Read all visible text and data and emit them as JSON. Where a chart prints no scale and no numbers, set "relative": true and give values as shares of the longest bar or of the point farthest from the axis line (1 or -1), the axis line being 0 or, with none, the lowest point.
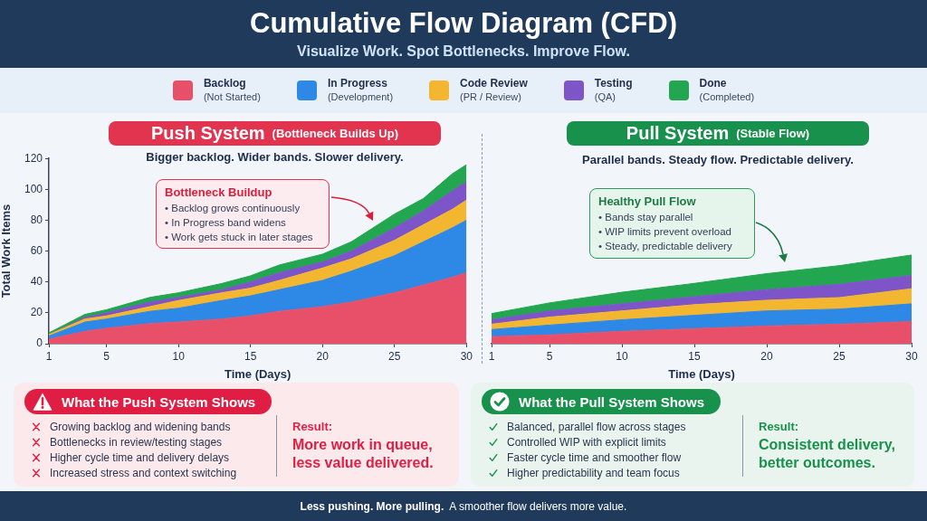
{
  "chart_data": [
    {
      "type": "other",
      "title": "Cumulative Flow Diagram (CFD)",
      "subtitle": "Visualize Work. Spot Bottlenecks. Improve Flow."
    },
    {
      "type": "area",
      "title": "Push System (Bottleneck Builds Up)",
      "subtitle": "Bigger backlog. Wider bands. Slower delivery.",
      "xlabel": "Time (Days)",
      "ylabel": "Total Work Items",
      "annotations": [
        "Bottleneck Buildup",
        "• Backlog grows continuously",
        "• In Progress band widens",
        "• Work gets stuck in later stages"
      ],
      "stacked": true,
      "legend": "top",
      "xlim": [
        1,
        30
      ],
      "xticks": [
        1,
        5,
        10,
        15,
        20,
        25,
        30
      ],
      "ylim": [
        0,
        120
      ],
      "yticks": [
        0,
        20,
        40,
        60,
        80,
        100,
        120
      ],
      "x": [
        1,
        3.5,
        5,
        8,
        10,
        13,
        15,
        17,
        20,
        22,
        25,
        27,
        29,
        30
      ],
      "series": [
        {
          "name": "Backlog (Not Started)",
          "color": "#e8506a",
          "values": [
            3,
            8,
            10,
            13,
            14,
            16,
            18,
            21,
            24,
            27,
            33,
            38,
            43,
            46
          ]
        },
        {
          "name": "In Progress (Development)",
          "color": "#2e88e6",
          "values": [
            2,
            6,
            6,
            8,
            9,
            12,
            13,
            14,
            17,
            20,
            24,
            28,
            32,
            34
          ]
        },
        {
          "name": "Code Review (PR / Review)",
          "color": "#f2b630",
          "values": [
            1,
            2,
            2,
            3,
            5,
            5,
            5,
            6,
            8,
            8,
            10,
            11,
            12,
            13
          ]
        },
        {
          "name": "Testing (QA)",
          "color": "#7d55c9",
          "values": [
            0,
            1,
            2,
            3,
            2,
            2,
            4,
            5,
            4,
            5,
            8,
            9,
            12,
            12
          ]
        },
        {
          "name": "Done (Completed)",
          "color": "#22a650",
          "values": [
            1,
            2,
            2,
            3,
            3,
            4,
            4,
            5,
            5,
            6,
            9,
            8,
            11,
            11
          ]
        }
      ]
    },
    {
      "type": "area",
      "title": "Pull System (Stable Flow)",
      "subtitle": "Parallel bands. Steady flow. Predictable delivery.",
      "xlabel": "Time (Days)",
      "annotations": [
        "Healthy Pull Flow",
        "• Bands stay parallel",
        "• WIP limits prevent overload",
        "• Steady, predictable delivery"
      ],
      "stacked": true,
      "relative": true,
      "legend": "top",
      "xlim": [
        1,
        30
      ],
      "xticks": [
        1,
        5,
        10,
        15,
        20,
        25,
        30
      ],
      "x": [
        1,
        5,
        10,
        15,
        20,
        25,
        30
      ],
      "series": [
        {
          "name": "Backlog (Not Started)",
          "color": "#e8506a",
          "values": [
            0.08,
            0.1,
            0.14,
            0.17,
            0.2,
            0.22,
            0.25
          ]
        },
        {
          "name": "In Progress (Development)",
          "color": "#2e88e6",
          "values": [
            0.08,
            0.11,
            0.13,
            0.15,
            0.17,
            0.17,
            0.2
          ]
        },
        {
          "name": "Code Review (PR / Review)",
          "color": "#f2b630",
          "values": [
            0.06,
            0.09,
            0.1,
            0.12,
            0.12,
            0.13,
            0.17
          ]
        },
        {
          "name": "Testing (QA)",
          "color": "#7d55c9",
          "values": [
            0.05,
            0.07,
            0.08,
            0.09,
            0.12,
            0.15,
            0.15
          ]
        },
        {
          "name": "Done (Completed)",
          "color": "#22a650",
          "values": [
            0.07,
            0.09,
            0.13,
            0.15,
            0.18,
            0.21,
            0.23
          ]
        }
      ]
    },
    {
      "type": "other",
      "title": "What the Push System Shows",
      "color": "#e01e44",
      "annotations": [
        "Growing backlog and widening bands",
        "Bottlenecks in review/testing stages",
        "Higher cycle time and delivery delays",
        "Increased stress and context switching",
        "Result:",
        "More work in queue, less value delivered."
      ]
    },
    {
      "type": "other",
      "title": "What the Pull System Shows",
      "color": "#17914b",
      "annotations": [
        "Balanced, parallel flow across stages",
        "Controlled WIP with explicit limits",
        "Faster cycle time and smoother flow",
        "Higher predictability and team focus",
        "Result:",
        "Consistent delivery, better outcomes."
      ]
    },
    {
      "type": "other",
      "annotations": [
        "Less pushing. More pulling.",
        "A smoother flow delivers more value."
      ]
    }
  ]
}
